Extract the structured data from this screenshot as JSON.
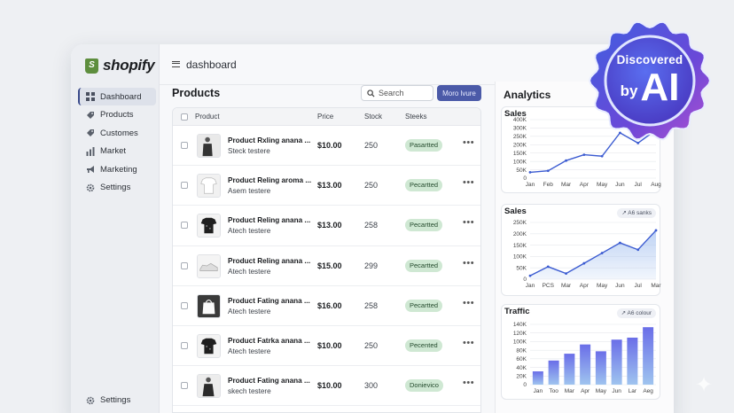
{
  "app": {
    "brand": "shopify",
    "topbar_title": "dashboard"
  },
  "sidebar": {
    "items": [
      {
        "label": "Dashboard",
        "icon": "grid-icon",
        "active": true
      },
      {
        "label": "Products",
        "icon": "tag-icon",
        "active": false
      },
      {
        "label": "Customes",
        "icon": "tag-icon",
        "active": false
      },
      {
        "label": "Market",
        "icon": "bar-chart-icon",
        "active": false
      },
      {
        "label": "Marketing",
        "icon": "megaphone-icon",
        "active": false
      },
      {
        "label": "Settings",
        "icon": "gear-icon",
        "active": false
      }
    ],
    "bottom": {
      "label": "Settings",
      "icon": "gear-icon"
    }
  },
  "products": {
    "title": "Products",
    "search_placeholder": "Search",
    "more_label": "Moro lvure",
    "columns": {
      "product": "Product",
      "price": "Price",
      "stock": "Stock",
      "status": "Steeks"
    },
    "rows": [
      {
        "name": "Product Rxling anana ...",
        "sub": "Steck testere",
        "price": "$10.00",
        "stock": "250",
        "status": "Pasartted",
        "thumb": "tshirt-dark"
      },
      {
        "name": "Product Reling aroma ...",
        "sub": "Asem testere",
        "price": "$13.00",
        "stock": "250",
        "status": "Pecartted",
        "thumb": "tshirt-white"
      },
      {
        "name": "Product Reling anana ...",
        "sub": "Atech testere",
        "price": "$13.00",
        "stock": "258",
        "status": "Pecartted",
        "thumb": "tshirt-black"
      },
      {
        "name": "Product Reling anana ...",
        "sub": "Atech testere",
        "price": "$15.00",
        "stock": "299",
        "status": "Pecartted",
        "thumb": "sneaker"
      },
      {
        "name": "Product Fating anana ...",
        "sub": "Atech testere",
        "price": "$16.00",
        "stock": "258",
        "status": "Pecartted",
        "thumb": "bag"
      },
      {
        "name": "Product Fatrka anana ...",
        "sub": "Atech testere",
        "price": "$10.00",
        "stock": "250",
        "status": "Pecented",
        "thumb": "tshirt-black"
      },
      {
        "name": "Product Fating anana ...",
        "sub": "skech testere",
        "price": "$10.00",
        "stock": "300",
        "status": "Donievico",
        "thumb": "person"
      }
    ],
    "row_action_icon": "more-horizontal-icon"
  },
  "analytics": {
    "title": "Analytics",
    "colors": {
      "line": "#3b5bd1",
      "fill": "#a9c4f0",
      "bar_top": "#6a6ee8",
      "bar_bottom": "#9fc4ef"
    }
  },
  "badge": {
    "line1": "Discovered",
    "by": "by",
    "ai": "AI"
  },
  "chart_data": [
    {
      "type": "line",
      "title": "Sales",
      "categories": [
        "Jan",
        "Feb",
        "Mar",
        "Apr",
        "May",
        "Jun",
        "Jul",
        "Aug"
      ],
      "values": [
        40,
        50,
        120,
        160,
        150,
        310,
        240,
        330
      ],
      "yticks": [
        "0",
        "50K",
        "100K",
        "150K",
        "200K",
        "250K",
        "300K",
        "400K"
      ],
      "ylim": [
        0,
        400
      ]
    },
    {
      "type": "area",
      "title": "Sales",
      "chip": "A6 sanks",
      "categories": [
        "Jan",
        "PCS",
        "Mar",
        "Apr",
        "May",
        "Jun",
        "Jul",
        "Mar"
      ],
      "values": [
        15,
        55,
        25,
        70,
        115,
        160,
        130,
        215
      ],
      "yticks": [
        "0",
        "50K",
        "100K",
        "150K",
        "200K",
        "250K"
      ],
      "ylim": [
        0,
        250
      ]
    },
    {
      "type": "bar",
      "title": "Traffic",
      "chip": "A6 colour",
      "categories": [
        "Jan",
        "Too",
        "Mar",
        "Apr",
        "May",
        "Jun",
        "Lar",
        "Aeg"
      ],
      "values": [
        33,
        60,
        77,
        100,
        83,
        112,
        117,
        143
      ],
      "yticks": [
        "0",
        "20K",
        "40K",
        "60K",
        "80K",
        "100K",
        "120K",
        "140K"
      ],
      "ylim": [
        0,
        150
      ]
    }
  ]
}
